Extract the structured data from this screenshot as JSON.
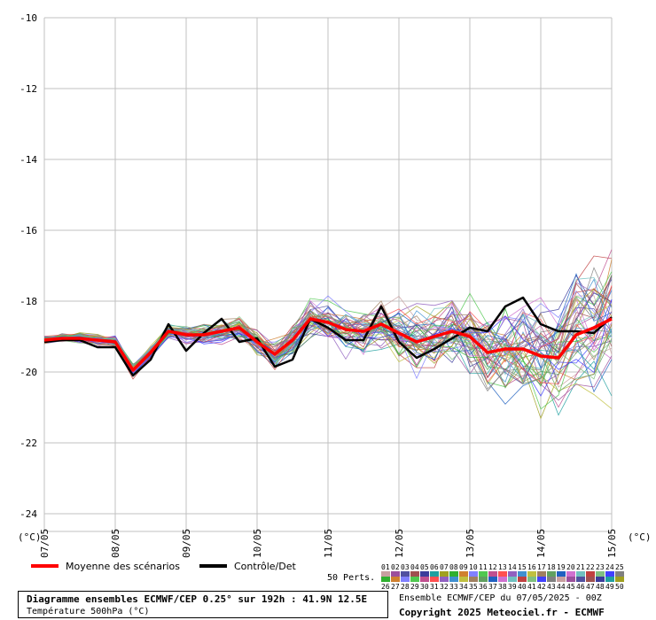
{
  "chart_data": {
    "type": "line",
    "title": "Diagramme ensembles ECMWF/CEP 0.25° sur 192h : 41.9N 12.5E",
    "subtitle": "Température 500hPa (°C)",
    "y_unit_label": "(°C)",
    "ylim": [
      -24.5,
      -9.5
    ],
    "y_ticks": [
      -10,
      -12,
      -14,
      -16,
      -18,
      -20,
      -22,
      -24
    ],
    "x_ticks": [
      "07/05",
      "08/05",
      "09/05",
      "10/05",
      "11/05",
      "12/05",
      "13/05",
      "14/05",
      "15/05"
    ],
    "x_range_hours": [
      0,
      192
    ],
    "step_hours": 6,
    "grid": true,
    "legend_position": "bottom",
    "series": [
      {
        "name": "Moyenne des scénarios",
        "color": "#ff0000",
        "values": [
          -19.1,
          -19.05,
          -19.05,
          -19.1,
          -19.15,
          -19.95,
          -19.45,
          -18.85,
          -18.95,
          -18.95,
          -18.85,
          -18.75,
          -19.15,
          -19.5,
          -19.1,
          -18.5,
          -18.6,
          -18.8,
          -18.85,
          -18.65,
          -18.9,
          -19.15,
          -19.0,
          -18.85,
          -19.0,
          -19.45,
          -19.35,
          -19.35,
          -19.55,
          -19.6,
          -18.95,
          -18.75,
          -18.5
        ]
      },
      {
        "name": "Contrôle/Det",
        "color": "#000000",
        "values": [
          -19.15,
          -19.1,
          -19.1,
          -19.3,
          -19.3,
          -20.1,
          -19.65,
          -18.65,
          -19.4,
          -18.9,
          -18.5,
          -19.15,
          -19.05,
          -19.85,
          -19.65,
          -18.5,
          -18.75,
          -19.1,
          -19.1,
          -18.15,
          -19.15,
          -19.6,
          -19.35,
          -19.05,
          -18.75,
          -18.85,
          -18.15,
          -17.9,
          -18.65,
          -18.85,
          -18.85,
          -18.9,
          -18.45
        ]
      }
    ]
  },
  "legend": {
    "mean_label": "Moyenne des scénarios",
    "control_label": "Contrôle/Det",
    "perts_label": "50 Perts.",
    "pert_numbers_top": [
      "01",
      "02",
      "03",
      "04",
      "05",
      "06",
      "07",
      "08",
      "09",
      "10",
      "11",
      "12",
      "13",
      "14",
      "15",
      "16",
      "17",
      "18",
      "19",
      "20",
      "21",
      "22",
      "23",
      "24",
      "25"
    ],
    "pert_numbers_bottom": [
      "26",
      "27",
      "28",
      "29",
      "30",
      "31",
      "32",
      "33",
      "34",
      "35",
      "36",
      "37",
      "38",
      "39",
      "40",
      "41",
      "42",
      "43",
      "44",
      "45",
      "46",
      "47",
      "48",
      "49",
      "50"
    ],
    "pert_colors": [
      "#c8a0a0",
      "#9c4f9c",
      "#5050a0",
      "#a05050",
      "#3c3c9c",
      "#20a0a0",
      "#a0a020",
      "#30b030",
      "#d08030",
      "#8080ff",
      "#50c850",
      "#c05090",
      "#ff5050",
      "#9060c0",
      "#4090d0",
      "#c0c040",
      "#a08060",
      "#60a060",
      "#2060c0",
      "#d070d0",
      "#70c0c0",
      "#c04040",
      "#80c080",
      "#4040ff",
      "#808080"
    ]
  },
  "info": {
    "title": "Diagramme ensembles ECMWF/CEP 0.25° sur 192h : 41.9N 12.5E",
    "subtitle": "Température 500hPa (°C)",
    "run": "Ensemble ECMWF/CEP du 07/05/2025 - 00Z",
    "copyright": "Copyright 2025 Meteociel.fr - ECMWF"
  },
  "colors": {
    "grid": "#c0c0c0",
    "mean": "#ff0000",
    "control": "#000000"
  }
}
